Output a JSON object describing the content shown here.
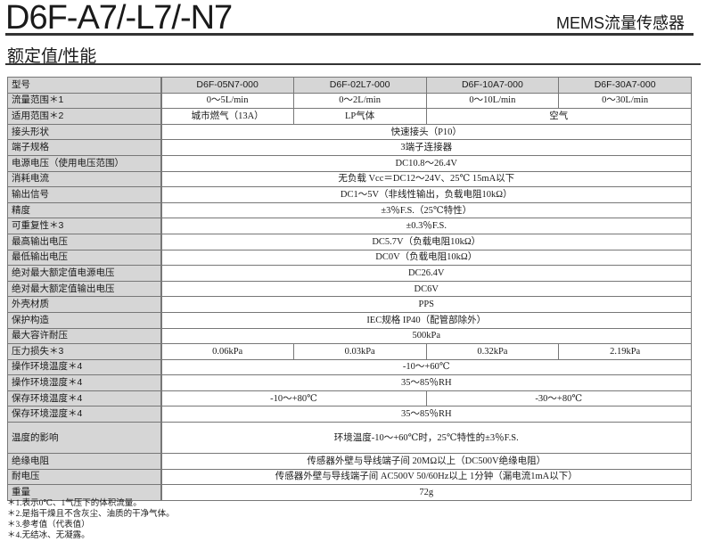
{
  "header": {
    "title": "D6F-A7/-L7/-N7",
    "subtitle": "MEMS流量传感器",
    "section": "额定值/性能"
  },
  "table": {
    "header": [
      "型号",
      "D6F-05N7-000",
      "D6F-02L7-000",
      "D6F-10A7-000",
      "D6F-30A7-000"
    ],
    "rows": [
      {
        "label": "流量范围＊1",
        "cells": [
          {
            "text": "0～5L/min",
            "span": 1
          },
          {
            "text": "0～2L/min",
            "span": 1
          },
          {
            "text": "0～10L/min",
            "span": 1
          },
          {
            "text": "0～30L/min",
            "span": 1
          }
        ]
      },
      {
        "label": "适用范围＊2",
        "cells": [
          {
            "text": "城市燃气（13A）",
            "span": 1
          },
          {
            "text": "LP气体",
            "span": 1
          },
          {
            "text": "空气",
            "span": 2
          }
        ]
      },
      {
        "label": "接头形状",
        "cells": [
          {
            "text": "快速接头（P10）",
            "span": 4
          }
        ]
      },
      {
        "label": "端子规格",
        "cells": [
          {
            "text": "3端子连接器",
            "span": 4
          }
        ]
      },
      {
        "label": "电源电压（使用电压范围）",
        "cells": [
          {
            "text": "DC10.8～26.4V",
            "span": 4
          }
        ]
      },
      {
        "label": "消耗电流",
        "cells": [
          {
            "text": "无负载 Vcc＝DC12～24V、25℃ 15mA以下",
            "span": 4
          }
        ]
      },
      {
        "label": "输出信号",
        "cells": [
          {
            "text": "DC1～5V（非线性输出，负载电阻10kΩ）",
            "span": 4
          }
        ]
      },
      {
        "label": "精度",
        "cells": [
          {
            "text": "±3％F.S.（25℃特性）",
            "span": 4
          }
        ]
      },
      {
        "label": "可重复性＊3",
        "cells": [
          {
            "text": "±0.3％F.S.",
            "span": 4
          }
        ]
      },
      {
        "label": "最高输出电压",
        "cells": [
          {
            "text": "DC5.7V（负载电阻10kΩ）",
            "span": 4
          }
        ]
      },
      {
        "label": "最低输出电压",
        "cells": [
          {
            "text": "DC0V（负载电阻10kΩ）",
            "span": 4
          }
        ]
      },
      {
        "label": "绝对最大额定值电源电压",
        "cells": [
          {
            "text": "DC26.4V",
            "span": 4
          }
        ]
      },
      {
        "label": "绝对最大额定值输出电压",
        "cells": [
          {
            "text": "DC6V",
            "span": 4
          }
        ]
      },
      {
        "label": "外壳材质",
        "cells": [
          {
            "text": "PPS",
            "span": 4
          }
        ]
      },
      {
        "label": "保护构造",
        "cells": [
          {
            "text": "IEC规格 IP40（配管部除外）",
            "span": 4
          }
        ]
      },
      {
        "label": "最大容许耐压",
        "cells": [
          {
            "text": "500kPa",
            "span": 4
          }
        ]
      },
      {
        "label": "压力损失＊3",
        "cells": [
          {
            "text": "0.06kPa",
            "span": 1
          },
          {
            "text": "0.03kPa",
            "span": 1
          },
          {
            "text": "0.32kPa",
            "span": 1
          },
          {
            "text": "2.19kPa",
            "span": 1
          }
        ]
      },
      {
        "label": "操作环境温度＊4",
        "cells": [
          {
            "text": "-10～+60℃",
            "span": 4
          }
        ]
      },
      {
        "label": "操作环境湿度＊4",
        "cells": [
          {
            "text": "35～85％RH",
            "span": 4
          }
        ]
      },
      {
        "label": "保存环境温度＊4",
        "cells": [
          {
            "text": "-10～+80℃",
            "span": 2
          },
          {
            "text": "-30～+80℃",
            "span": 2
          }
        ]
      },
      {
        "label": "保存环境湿度＊4",
        "cells": [
          {
            "text": "35～85％RH",
            "span": 4
          }
        ]
      },
      {
        "label": "温度的影响",
        "tall": true,
        "cells": [
          {
            "text": "环境温度-10～+60℃时，25℃特性的±3％F.S.",
            "span": 4
          }
        ]
      },
      {
        "label": "绝缘电阻",
        "cells": [
          {
            "text": "传感器外壁与导线端子间 20MΩ以上（DC500V绝缘电阻）",
            "span": 4
          }
        ]
      },
      {
        "label": "耐电压",
        "cells": [
          {
            "text": "传感器外壁与导线端子间 AC500V 50/60Hz以上 1分钟（漏电流1mA以下）",
            "span": 4
          }
        ]
      },
      {
        "label": "重量",
        "cells": [
          {
            "text": "72g",
            "span": 4
          }
        ]
      }
    ]
  },
  "notes": [
    "＊1.表示0℃、1气压下的体积流量。",
    "＊2.是指干燥且不含灰尘、油质的干净气体。",
    "＊3.参考值（代表值）",
    "＊4.无结冰、无凝露。"
  ]
}
